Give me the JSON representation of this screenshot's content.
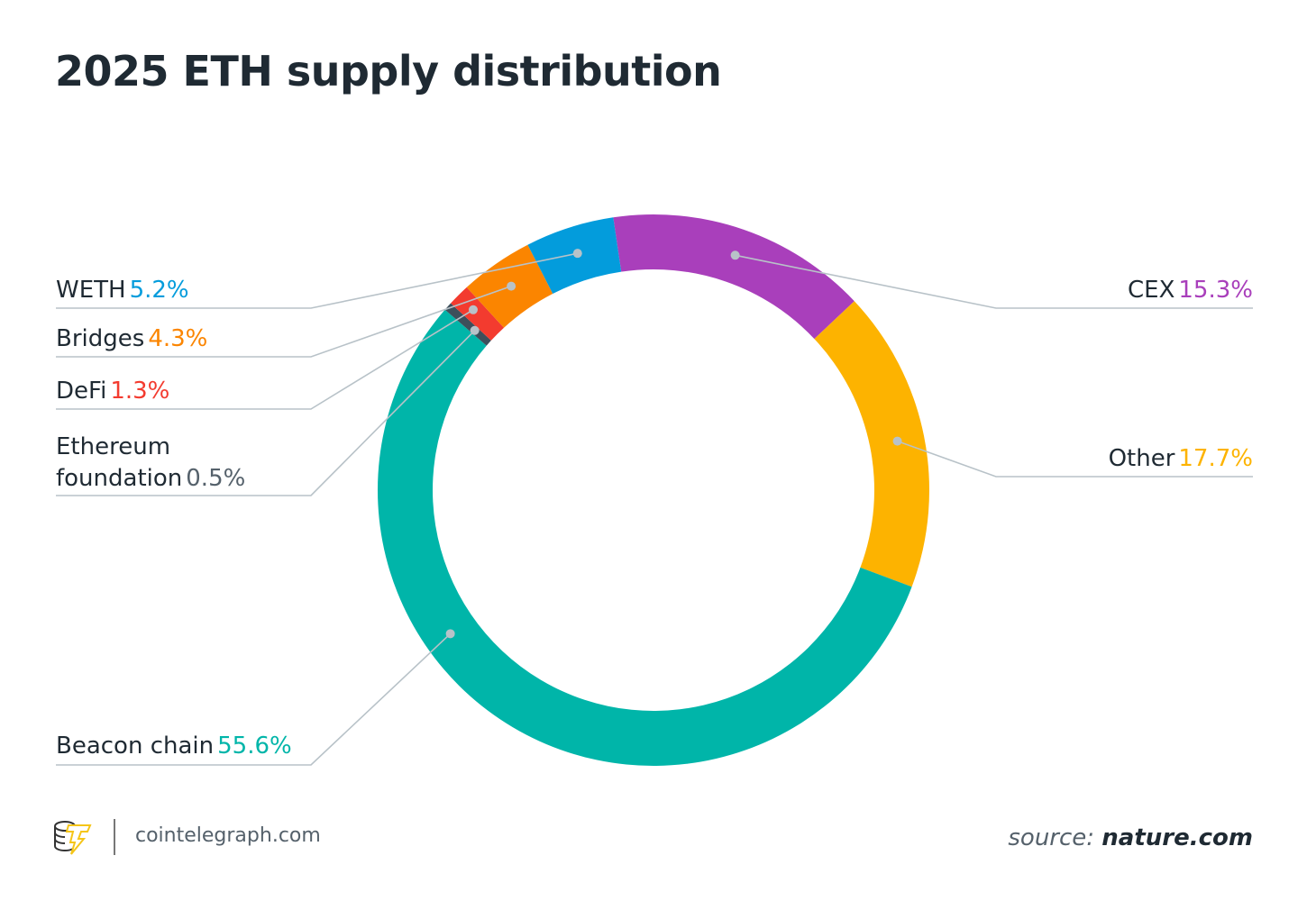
{
  "chart_data": {
    "type": "pie",
    "variant": "donut",
    "title": "2025 ETH supply distribution",
    "direction": "clockwise",
    "slices": [
      {
        "label": "CEX",
        "value": 15.3,
        "value_label": "15.3%",
        "color": "#a93fbb",
        "side": "right"
      },
      {
        "label": "Other",
        "value": 17.7,
        "value_label": "17.7%",
        "color": "#fdb300",
        "side": "right"
      },
      {
        "label": "Beacon chain",
        "value": 55.6,
        "value_label": "55.6%",
        "color": "#00b5a9",
        "side": "left"
      },
      {
        "label": "Ethereum foundation",
        "value": 0.5,
        "value_label": "0.5%",
        "color": "#3d4f5b",
        "side": "left"
      },
      {
        "label": "DeFi",
        "value": 1.3,
        "value_label": "1.3%",
        "color": "#f33b2f",
        "side": "left"
      },
      {
        "label": "Bridges",
        "value": 4.3,
        "value_label": "4.3%",
        "color": "#fb8500",
        "side": "left"
      },
      {
        "label": "WETH",
        "value": 5.2,
        "value_label": "5.2%",
        "color": "#039cdc",
        "side": "left"
      }
    ],
    "label_lines": {
      "ethereum_foundation": [
        "Ethereum",
        "foundation"
      ]
    }
  },
  "footer": {
    "site": "cointelegraph.com",
    "source_prefix": "source:",
    "source_name": "nature.com"
  },
  "logo_accent": "#f5c518"
}
